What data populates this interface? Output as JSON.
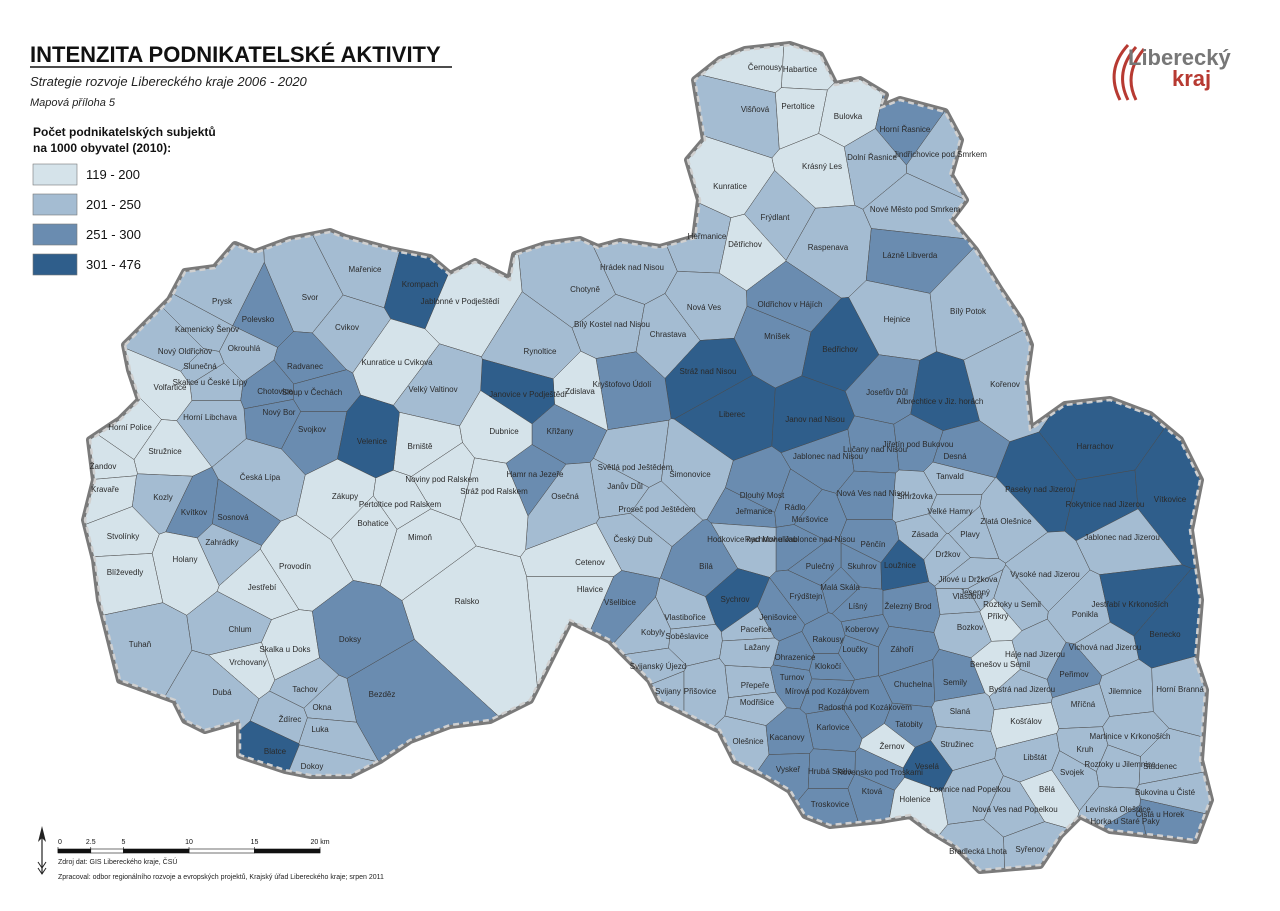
{
  "header": {
    "title": "INTENZITA PODNIKATELSKÉ AKTIVITY",
    "subtitle": "Strategie rozvoje Libereckého kraje 2006 - 2020",
    "note": "Mapová příloha 5"
  },
  "logo": {
    "line1": "Liberecký",
    "line2": "kraj"
  },
  "legend": {
    "title_lines": [
      "Počet podnikatelských subjektů",
      "na 1000 obyvatel (2010):"
    ],
    "items": [
      {
        "label": "119 - 200",
        "color": "#d5e3ea"
      },
      {
        "label": "201 - 250",
        "color": "#a4bcd2"
      },
      {
        "label": "251 - 300",
        "color": "#6a8cb0"
      },
      {
        "label": "301 - 476",
        "color": "#2f5e8b"
      }
    ]
  },
  "scale": {
    "ticks": [
      0,
      2.5,
      5,
      10,
      15,
      {
        "value": 20,
        "label": "20 km"
      }
    ]
  },
  "footer": {
    "source": "Zdroj dat: GIS Libereckého kraje, ČSÚ",
    "author": "Zpracoval: odbor regionálního rozvoje a evropských projektů, Krajský úřad Libereckého kraje; srpen 2011"
  },
  "municipalities": [
    {
      "name": "Černousy",
      "color": "#d5e3ea"
    },
    {
      "name": "Habartice",
      "color": "#d5e3ea"
    },
    {
      "name": "Višňová",
      "color": "#a4bcd2"
    },
    {
      "name": "Pertoltice",
      "color": "#d5e3ea"
    },
    {
      "name": "Bulovka",
      "color": "#d5e3ea"
    },
    {
      "name": "Horní Řasnice",
      "color": "#6a8cb0"
    },
    {
      "name": "Dolní Řasnice",
      "color": "#a4bcd2"
    },
    {
      "name": "Jindřichovice pod Smrkem",
      "color": "#a4bcd2"
    },
    {
      "name": "Krásný Les",
      "color": "#d5e3ea"
    },
    {
      "name": "Kunratice",
      "color": "#d5e3ea"
    },
    {
      "name": "Frýdlant",
      "color": "#a4bcd2"
    },
    {
      "name": "Nové Město pod Smrkem",
      "color": "#a4bcd2"
    },
    {
      "name": "Heřmanice",
      "color": "#a4bcd2"
    },
    {
      "name": "Dětřichov",
      "color": "#d5e3ea"
    },
    {
      "name": "Raspenava",
      "color": "#a4bcd2"
    },
    {
      "name": "Lázně Libverda",
      "color": "#6a8cb0"
    },
    {
      "name": "Hrádek nad Nisou",
      "color": "#a4bcd2"
    },
    {
      "name": "Chotyně",
      "color": "#a4bcd2"
    },
    {
      "name": "Nová Ves",
      "color": "#a4bcd2"
    },
    {
      "name": "Oldřichov v Hájích",
      "color": "#6a8cb0"
    },
    {
      "name": "Bílý Potok",
      "color": "#a4bcd2"
    },
    {
      "name": "Hejnice",
      "color": "#a4bcd2"
    },
    {
      "name": "Bílý Kostel nad Nisou",
      "color": "#a4bcd2"
    },
    {
      "name": "Chrastava",
      "color": "#a4bcd2"
    },
    {
      "name": "Mníšek",
      "color": "#6a8cb0"
    },
    {
      "name": "Rynoltice",
      "color": "#a4bcd2"
    },
    {
      "name": "Bedřichov",
      "color": "#2f5e8b"
    },
    {
      "name": "Stráž nad Nisou",
      "color": "#2f5e8b"
    },
    {
      "name": "Kryštofovo Údolí",
      "color": "#6a8cb0"
    },
    {
      "name": "Liberec",
      "color": "#2f5e8b"
    },
    {
      "name": "Josefův Důl",
      "color": "#6a8cb0"
    },
    {
      "name": "Albrechtice v Jiz. horách",
      "color": "#2f5e8b"
    },
    {
      "name": "Kořenov",
      "color": "#a4bcd2"
    },
    {
      "name": "Zdislava",
      "color": "#d5e3ea"
    },
    {
      "name": "Janovice v Podještědí",
      "color": "#2f5e8b"
    },
    {
      "name": "Křižany",
      "color": "#6a8cb0"
    },
    {
      "name": "Jablonné v Podještědí",
      "color": "#d5e3ea"
    },
    {
      "name": "Jablonec nad Nisou",
      "color": "#6a8cb0"
    },
    {
      "name": "Janov nad Nisou",
      "color": "#2f5e8b"
    },
    {
      "name": "Lučany nad Nisou",
      "color": "#6a8cb0"
    },
    {
      "name": "Jiřetín pod Bukovou",
      "color": "#6a8cb0"
    },
    {
      "name": "Desná",
      "color": "#6a8cb0"
    },
    {
      "name": "Harrachov",
      "color": "#2f5e8b"
    },
    {
      "name": "Tanvald",
      "color": "#a4bcd2"
    },
    {
      "name": "Světlá pod Ještědem",
      "color": "#a4bcd2"
    },
    {
      "name": "Hamr na Jezeře",
      "color": "#6a8cb0"
    },
    {
      "name": "Janův Důl",
      "color": "#a4bcd2"
    },
    {
      "name": "Osečná",
      "color": "#a4bcd2"
    },
    {
      "name": "Šimonovice",
      "color": "#a4bcd2"
    },
    {
      "name": "Dlouhý Most",
      "color": "#6a8cb0"
    },
    {
      "name": "Nová Ves nad Nisou",
      "color": "#6a8cb0"
    },
    {
      "name": "Smržovka",
      "color": "#a4bcd2"
    },
    {
      "name": "Paseky nad Jizerou",
      "color": "#2f5e8b"
    },
    {
      "name": "Rokytnice nad Jizerou",
      "color": "#2f5e8b"
    },
    {
      "name": "Vítkovice",
      "color": "#2f5e8b"
    },
    {
      "name": "Proseč pod Ještědem",
      "color": "#a4bcd2"
    },
    {
      "name": "Jeřmanice",
      "color": "#6a8cb0"
    },
    {
      "name": "Rádlo",
      "color": "#6a8cb0"
    },
    {
      "name": "Velké Hamry",
      "color": "#a4bcd2"
    },
    {
      "name": "Český Dub",
      "color": "#a4bcd2"
    },
    {
      "name": "Rychnov u Jablonce nad Nisou",
      "color": "#6a8cb0"
    },
    {
      "name": "Maršovice",
      "color": "#6a8cb0"
    },
    {
      "name": "Pěnčín",
      "color": "#6a8cb0"
    },
    {
      "name": "Zásada",
      "color": "#a4bcd2"
    },
    {
      "name": "Plavy",
      "color": "#a4bcd2"
    },
    {
      "name": "Zlatá Olešnice",
      "color": "#a4bcd2"
    },
    {
      "name": "Držkov",
      "color": "#a4bcd2"
    },
    {
      "name": "Jablonec nad Jizerou",
      "color": "#a4bcd2"
    },
    {
      "name": "Hodkovice nad Mohelkou",
      "color": "#a4bcd2"
    },
    {
      "name": "Skuhrov",
      "color": "#6a8cb0"
    },
    {
      "name": "Loužnice",
      "color": "#2f5e8b"
    },
    {
      "name": "Vysoké nad Jizerou",
      "color": "#a4bcd2"
    },
    {
      "name": "Bílá",
      "color": "#6a8cb0"
    },
    {
      "name": "Pulečný",
      "color": "#6a8cb0"
    },
    {
      "name": "Jílové u Držkova",
      "color": "#a4bcd2"
    },
    {
      "name": "Jesenný",
      "color": "#a4bcd2"
    },
    {
      "name": "Vlastibořice",
      "color": "#a4bcd2"
    },
    {
      "name": "Sychrov",
      "color": "#2f5e8b"
    },
    {
      "name": "Paceřice",
      "color": "#a4bcd2"
    },
    {
      "name": "Frýdštejn",
      "color": "#6a8cb0"
    },
    {
      "name": "Malá Skála",
      "color": "#6a8cb0"
    },
    {
      "name": "Líšný",
      "color": "#6a8cb0"
    },
    {
      "name": "Železný Brod",
      "color": "#6a8cb0"
    },
    {
      "name": "Vlastiboř",
      "color": "#a4bcd2"
    },
    {
      "name": "Roztoky u Semil",
      "color": "#a4bcd2"
    },
    {
      "name": "Bozkov",
      "color": "#a4bcd2"
    },
    {
      "name": "Ponikla",
      "color": "#a4bcd2"
    },
    {
      "name": "Jestřabí v Krkonoších",
      "color": "#2f5e8b"
    },
    {
      "name": "Benecko",
      "color": "#2f5e8b"
    },
    {
      "name": "Jenišovice",
      "color": "#6a8cb0"
    },
    {
      "name": "Koberovy",
      "color": "#6a8cb0"
    },
    {
      "name": "Soběslavice",
      "color": "#a4bcd2"
    },
    {
      "name": "Kobyly",
      "color": "#a4bcd2"
    },
    {
      "name": "Rakousy",
      "color": "#6a8cb0"
    },
    {
      "name": "Příkrý",
      "color": "#d5e3ea"
    },
    {
      "name": "Záhoří",
      "color": "#6a8cb0"
    },
    {
      "name": "Háje nad Jizerou",
      "color": "#a4bcd2"
    },
    {
      "name": "Víchová nad Jizerou",
      "color": "#a4bcd2"
    },
    {
      "name": "Loučky",
      "color": "#6a8cb0"
    },
    {
      "name": "Ohrazenice",
      "color": "#6a8cb0"
    },
    {
      "name": "Svijanský Újezd",
      "color": "#a4bcd2"
    },
    {
      "name": "Přepeře",
      "color": "#a4bcd2"
    },
    {
      "name": "Turnov",
      "color": "#6a8cb0"
    },
    {
      "name": "Klokočí",
      "color": "#6a8cb0"
    },
    {
      "name": "Chuchelna",
      "color": "#6a8cb0"
    },
    {
      "name": "Semily",
      "color": "#6a8cb0"
    },
    {
      "name": "Benešov u Semil",
      "color": "#d5e3ea"
    },
    {
      "name": "Peřimov",
      "color": "#6a8cb0"
    },
    {
      "name": "Jilemnice",
      "color": "#a4bcd2"
    },
    {
      "name": "Horní Branná",
      "color": "#a4bcd2"
    },
    {
      "name": "Mírová pod Kozákovem",
      "color": "#6a8cb0"
    },
    {
      "name": "Svijany",
      "color": "#a4bcd2"
    },
    {
      "name": "Přišovice",
      "color": "#a4bcd2"
    },
    {
      "name": "Modřišice",
      "color": "#a4bcd2"
    },
    {
      "name": "Radostná pod Kozákovem",
      "color": "#6a8cb0"
    },
    {
      "name": "Slaná",
      "color": "#a4bcd2"
    },
    {
      "name": "Bystrá nad Jizerou",
      "color": "#a4bcd2"
    },
    {
      "name": "Mříčná",
      "color": "#a4bcd2"
    },
    {
      "name": "Košťálov",
      "color": "#d5e3ea"
    },
    {
      "name": "Olešnice",
      "color": "#a4bcd2"
    },
    {
      "name": "Karlovice",
      "color": "#6a8cb0"
    },
    {
      "name": "Tatobity",
      "color": "#6a8cb0"
    },
    {
      "name": "Stružinec",
      "color": "#a4bcd2"
    },
    {
      "name": "Martinice v Krkonoších",
      "color": "#a4bcd2"
    },
    {
      "name": "Kacanovy",
      "color": "#6a8cb0"
    },
    {
      "name": "Žernov",
      "color": "#d5e3ea"
    },
    {
      "name": "Libštát",
      "color": "#a4bcd2"
    },
    {
      "name": "Kruh",
      "color": "#a4bcd2"
    },
    {
      "name": "Roztoky u Jilemnice",
      "color": "#a4bcd2"
    },
    {
      "name": "Studenec",
      "color": "#a4bcd2"
    },
    {
      "name": "Vyskeř",
      "color": "#6a8cb0"
    },
    {
      "name": "Hrubá Skála",
      "color": "#6a8cb0"
    },
    {
      "name": "Rovensko pod Troskami",
      "color": "#6a8cb0"
    },
    {
      "name": "Veselá",
      "color": "#2f5e8b"
    },
    {
      "name": "Lomnice nad Popelkou",
      "color": "#a4bcd2"
    },
    {
      "name": "Svojek",
      "color": "#a4bcd2"
    },
    {
      "name": "Bělá",
      "color": "#d5e3ea"
    },
    {
      "name": "Ktová",
      "color": "#6a8cb0"
    },
    {
      "name": "Holenice",
      "color": "#d5e3ea"
    },
    {
      "name": "Troskovice",
      "color": "#6a8cb0"
    },
    {
      "name": "Bukovina u Čisté",
      "color": "#a4bcd2"
    },
    {
      "name": "Levínská Olešnice",
      "color": "#a4bcd2"
    },
    {
      "name": "Čistá u Horek",
      "color": "#6a8cb0"
    },
    {
      "name": "Horka u Staré Paky",
      "color": "#6a8cb0"
    },
    {
      "name": "Nová Ves nad Popelkou",
      "color": "#a4bcd2"
    },
    {
      "name": "Bradlecká Lhota",
      "color": "#a4bcd2"
    },
    {
      "name": "Syřenov",
      "color": "#a4bcd2"
    },
    {
      "name": "Cetenov",
      "color": "#d5e3ea"
    },
    {
      "name": "Hlavice",
      "color": "#d5e3ea"
    },
    {
      "name": "Všelibice",
      "color": "#6a8cb0"
    },
    {
      "name": "Lažany",
      "color": "#a4bcd2"
    },
    {
      "name": "Mařenice",
      "color": "#a4bcd2"
    },
    {
      "name": "Svor",
      "color": "#a4bcd2"
    },
    {
      "name": "Krompach",
      "color": "#2f5e8b"
    },
    {
      "name": "Prysk",
      "color": "#a4bcd2"
    },
    {
      "name": "Kamenický Šenov",
      "color": "#a4bcd2"
    },
    {
      "name": "Polevsko",
      "color": "#6a8cb0"
    },
    {
      "name": "Nový Oldřichov",
      "color": "#a4bcd2"
    },
    {
      "name": "Okrouhlá",
      "color": "#a4bcd2"
    },
    {
      "name": "Slunečná",
      "color": "#a4bcd2"
    },
    {
      "name": "Skalice u České Lípy",
      "color": "#a4bcd2"
    },
    {
      "name": "Radvanec",
      "color": "#6a8cb0"
    },
    {
      "name": "Cvikov",
      "color": "#a4bcd2"
    },
    {
      "name": "Kunratice u Cvikova",
      "color": "#d5e3ea"
    },
    {
      "name": "Volfartice",
      "color": "#d5e3ea"
    },
    {
      "name": "Chotovice",
      "color": "#6a8cb0"
    },
    {
      "name": "Sloup v Čechách",
      "color": "#6a8cb0"
    },
    {
      "name": "Velký Valtinov",
      "color": "#a4bcd2"
    },
    {
      "name": "Nový Bor",
      "color": "#6a8cb0"
    },
    {
      "name": "Horní Libchava",
      "color": "#a4bcd2"
    },
    {
      "name": "Svojkov",
      "color": "#6a8cb0"
    },
    {
      "name": "Horní Police",
      "color": "#d5e3ea"
    },
    {
      "name": "Stružnice",
      "color": "#d5e3ea"
    },
    {
      "name": "Brniště",
      "color": "#d5e3ea"
    },
    {
      "name": "Dubnice",
      "color": "#d5e3ea"
    },
    {
      "name": "Velenice",
      "color": "#2f5e8b"
    },
    {
      "name": "Žandov",
      "color": "#d5e3ea"
    },
    {
      "name": "Česká Lípa",
      "color": "#a4bcd2"
    },
    {
      "name": "Zákupy",
      "color": "#d5e3ea"
    },
    {
      "name": "Noviny pod Ralskem",
      "color": "#d5e3ea"
    },
    {
      "name": "Stráž pod Ralskem",
      "color": "#d5e3ea"
    },
    {
      "name": "Kravaře",
      "color": "#d5e3ea"
    },
    {
      "name": "Kozly",
      "color": "#a4bcd2"
    },
    {
      "name": "Pertoltice pod Ralskem",
      "color": "#d5e3ea"
    },
    {
      "name": "Kvítkov",
      "color": "#6a8cb0"
    },
    {
      "name": "Sosnová",
      "color": "#6a8cb0"
    },
    {
      "name": "Bohatice",
      "color": "#d5e3ea"
    },
    {
      "name": "Mimoň",
      "color": "#d5e3ea"
    },
    {
      "name": "Stvolínky",
      "color": "#d5e3ea"
    },
    {
      "name": "Zahrádky",
      "color": "#a4bcd2"
    },
    {
      "name": "Holany",
      "color": "#d5e3ea"
    },
    {
      "name": "Provodín",
      "color": "#d5e3ea"
    },
    {
      "name": "Blíževedly",
      "color": "#d5e3ea"
    },
    {
      "name": "Jestřebí",
      "color": "#d5e3ea"
    },
    {
      "name": "Ralsko",
      "color": "#d5e3ea"
    },
    {
      "name": "Chlum",
      "color": "#a4bcd2"
    },
    {
      "name": "Skalka u Doks",
      "color": "#d5e3ea"
    },
    {
      "name": "Doksy",
      "color": "#6a8cb0"
    },
    {
      "name": "Tuhaň",
      "color": "#a4bcd2"
    },
    {
      "name": "Vrchovany",
      "color": "#d5e3ea"
    },
    {
      "name": "Bezděz",
      "color": "#6a8cb0"
    },
    {
      "name": "Tachov",
      "color": "#a4bcd2"
    },
    {
      "name": "Dubá",
      "color": "#a4bcd2"
    },
    {
      "name": "Okna",
      "color": "#a4bcd2"
    },
    {
      "name": "Ždírec",
      "color": "#a4bcd2"
    },
    {
      "name": "Luka",
      "color": "#a4bcd2"
    },
    {
      "name": "Blatce",
      "color": "#2f5e8b"
    },
    {
      "name": "Dokoy",
      "color": "#a4bcd2"
    }
  ]
}
